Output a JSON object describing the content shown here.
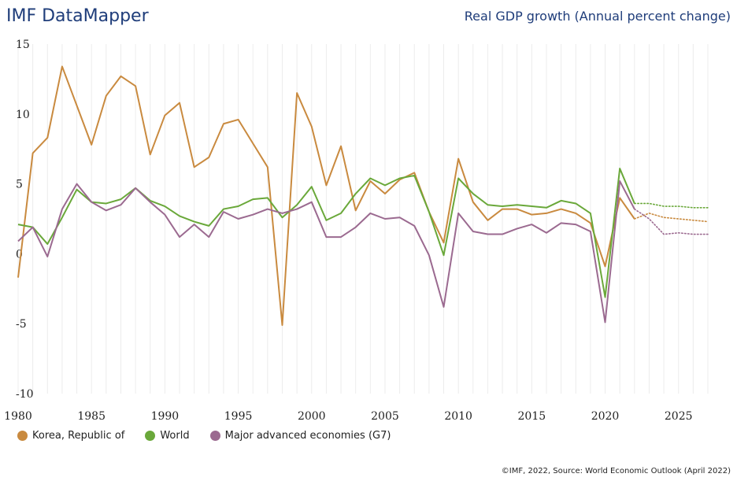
{
  "header": {
    "brand": "IMF DataMapper",
    "indicator": "Real GDP growth (Annual percent change)"
  },
  "footer": {
    "credit": "©IMF, 2022, Source: World Economic Outlook (April 2022)"
  },
  "chart_data": {
    "type": "line",
    "title": "Real GDP growth (Annual percent change)",
    "xlim": [
      1980,
      2027
    ],
    "ylim": [
      -10,
      15
    ],
    "x_ticks": [
      1980,
      1985,
      1990,
      1995,
      2000,
      2005,
      2010,
      2015,
      2020,
      2025
    ],
    "y_ticks": [
      15,
      10,
      5,
      0,
      -5,
      -10
    ],
    "grid": "vertical",
    "legend": "bottom-left",
    "last_actual_year": 2022,
    "x": [
      1980,
      1981,
      1982,
      1983,
      1984,
      1985,
      1986,
      1987,
      1988,
      1989,
      1990,
      1991,
      1992,
      1993,
      1994,
      1995,
      1996,
      1997,
      1998,
      1999,
      2000,
      2001,
      2002,
      2003,
      2004,
      2005,
      2006,
      2007,
      2008,
      2009,
      2010,
      2011,
      2012,
      2013,
      2014,
      2015,
      2016,
      2017,
      2018,
      2019,
      2020,
      2021,
      2022,
      2023,
      2024,
      2025,
      2026,
      2027
    ],
    "series": [
      {
        "name": "Korea, Republic of",
        "color": "#c98a3f",
        "values": [
          -1.7,
          7.2,
          8.3,
          13.4,
          10.6,
          7.8,
          11.3,
          12.7,
          12.0,
          7.1,
          9.9,
          10.8,
          6.2,
          6.9,
          9.3,
          9.6,
          7.9,
          6.2,
          -5.1,
          11.5,
          9.1,
          4.9,
          7.7,
          3.1,
          5.2,
          4.3,
          5.3,
          5.8,
          3.0,
          0.8,
          6.8,
          3.7,
          2.4,
          3.2,
          3.2,
          2.8,
          2.9,
          3.2,
          2.9,
          2.2,
          -0.9,
          4.0,
          2.5,
          2.9,
          2.6,
          2.5,
          2.4,
          2.3
        ]
      },
      {
        "name": "World",
        "color": "#6aa83a",
        "values": [
          2.1,
          1.9,
          0.7,
          2.6,
          4.6,
          3.7,
          3.6,
          3.9,
          4.7,
          3.8,
          3.4,
          2.7,
          2.3,
          2.0,
          3.2,
          3.4,
          3.9,
          4.0,
          2.6,
          3.5,
          4.8,
          2.4,
          2.9,
          4.3,
          5.4,
          4.9,
          5.4,
          5.6,
          3.0,
          -0.1,
          5.4,
          4.3,
          3.5,
          3.4,
          3.5,
          3.4,
          3.3,
          3.8,
          3.6,
          2.9,
          -3.1,
          6.1,
          3.6,
          3.6,
          3.4,
          3.4,
          3.3,
          3.3
        ]
      },
      {
        "name": "Major advanced economies (G7)",
        "color": "#9b6a90",
        "values": [
          0.9,
          1.9,
          -0.2,
          3.2,
          5.0,
          3.7,
          3.1,
          3.5,
          4.7,
          3.7,
          2.8,
          1.2,
          2.1,
          1.2,
          3.0,
          2.5,
          2.8,
          3.2,
          2.9,
          3.2,
          3.7,
          1.2,
          1.2,
          1.9,
          2.9,
          2.5,
          2.6,
          2.0,
          -0.1,
          -3.8,
          2.9,
          1.6,
          1.4,
          1.4,
          1.8,
          2.1,
          1.5,
          2.2,
          2.1,
          1.6,
          -4.9,
          5.2,
          3.2,
          2.5,
          1.4,
          1.5,
          1.4,
          1.4
        ]
      }
    ]
  }
}
